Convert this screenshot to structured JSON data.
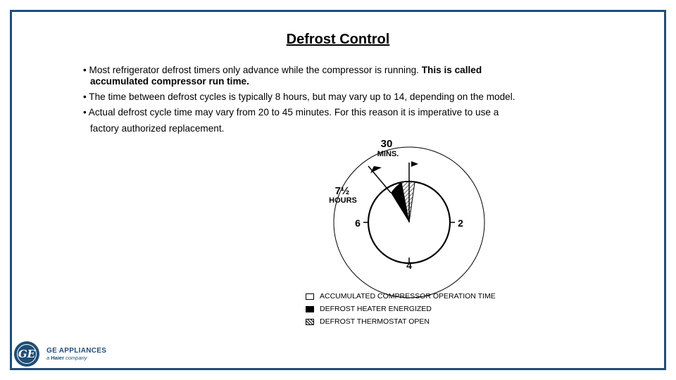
{
  "title": "Defrost Control",
  "bullets": [
    {
      "text": "• Most refrigerator defrost timers only advance while the compressor is running.",
      "bold": "This is called",
      "bold_cont": "accumulated compressor run time."
    },
    {
      "text": "• The time between defrost cycles is typically 8 hours, but may vary up to 14, depending on the model."
    },
    {
      "text": "• Actual defrost cycle time may vary from 20 to 45 minutes.  For this reason it is imperative to use a",
      "cont": "factory authorized replacement."
    }
  ],
  "diagram": {
    "label_30": "30",
    "label_mins": "MINS.",
    "label_7half": "7½",
    "label_hours": "HOURS",
    "tick_6": "6",
    "tick_2": "2",
    "tick_4": "4"
  },
  "legend": [
    {
      "label": "ACCUMULATED COMPRESSOR OPERATION TIME",
      "swatch": "white"
    },
    {
      "label": "DEFROST HEATER ENERGIZED",
      "swatch": "black"
    },
    {
      "label": "DEFROST THERMOSTAT OPEN",
      "swatch": "hatch"
    }
  ],
  "logo": {
    "badge": "GE",
    "name": "GE APPLIANCES",
    "sub_prefix": "a",
    "sub_brand": "Haier",
    "sub_suffix": "company"
  },
  "colors": {
    "frame": "#1f4e79"
  }
}
